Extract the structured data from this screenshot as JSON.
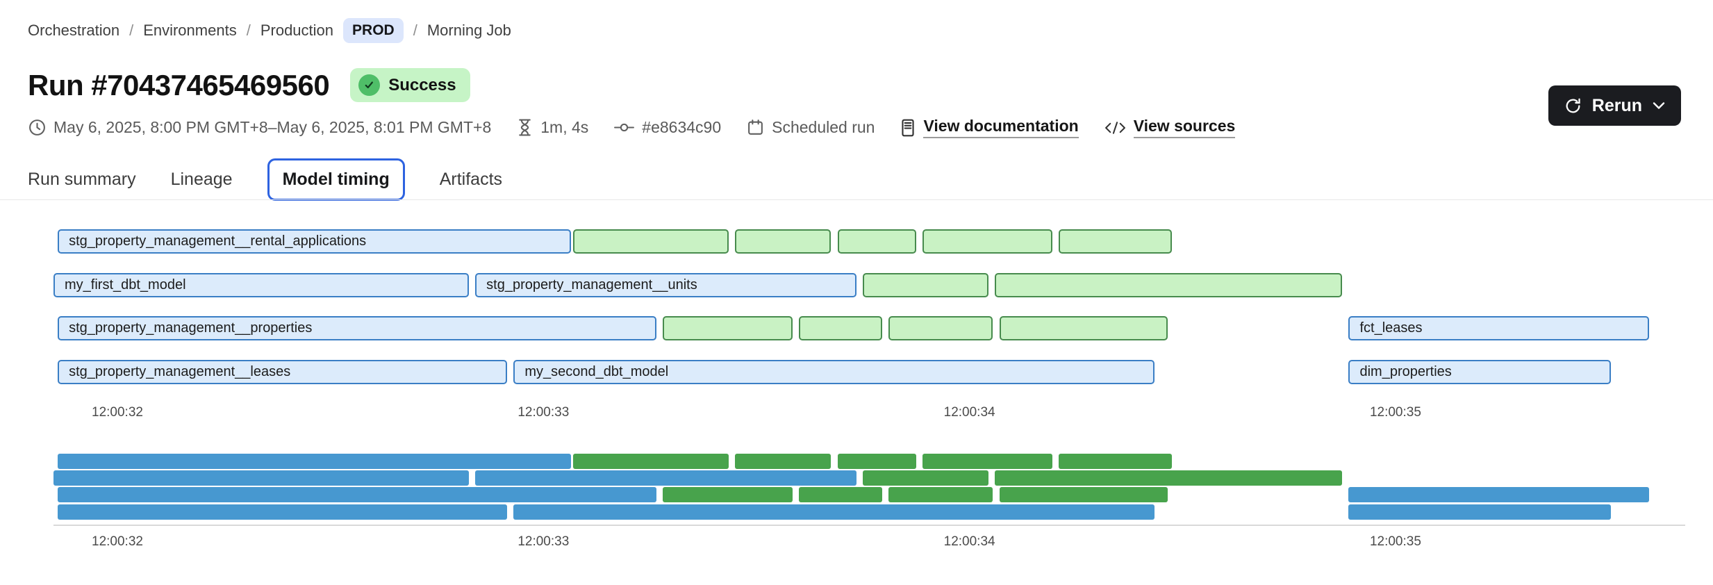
{
  "theme": {
    "accent_blue": "#2e63e0",
    "dark_button_bg": "#1b1c20",
    "prod_badge_bg": "#dce6fc",
    "success_badge_bg": "#c6f4c6",
    "success_icon_bg": "#4fbe68",
    "divider": "#e8e8e8",
    "minimap_divider": "#d9d9d9"
  },
  "breadcrumb": {
    "separator": "/",
    "items": [
      {
        "label": "Orchestration"
      },
      {
        "label": "Environments"
      },
      {
        "label": "Production"
      },
      {
        "label": "Morning Job"
      }
    ],
    "env_badge": "PROD"
  },
  "header": {
    "title": "Run #70437465469560",
    "status_label": "Success"
  },
  "meta": {
    "time_range": "May 6, 2025, 8:00 PM GMT+8–May 6, 2025, 8:01 PM GMT+8",
    "duration": "1m, 4s",
    "commit": "#e8634c90",
    "trigger": "Scheduled run",
    "documentation_link": "View documentation",
    "sources_link": "View sources"
  },
  "actions": {
    "rerun_label": "Rerun"
  },
  "tabs": [
    {
      "label": "Run summary",
      "active": false
    },
    {
      "label": "Lineage",
      "active": false
    },
    {
      "label": "Model timing",
      "active": true
    },
    {
      "label": "Artifacts",
      "active": false
    }
  ],
  "chart_data": {
    "type": "gantt",
    "title": "Model timing",
    "x_unit": "time of day, seconds after 12:00:00",
    "x_domain": [
      31.85,
      35.68
    ],
    "grid": false,
    "ticks": [
      {
        "t": 32,
        "label": "12:00:32"
      },
      {
        "t": 33,
        "label": "12:00:33"
      },
      {
        "t": 34,
        "label": "12:00:34"
      },
      {
        "t": 35,
        "label": "12:00:35"
      }
    ],
    "colors": {
      "blue_fill": "#dcebfb",
      "blue_border": "#3a7ec5",
      "green_fill": "#c9f2c4",
      "green_border": "#478b4d",
      "mini_blue": "#4798d0",
      "mini_green": "#48a34c"
    },
    "rows": [
      {
        "bars": [
          {
            "label": "stg_property_management__rental_applications",
            "color": "blue",
            "start": 31.86,
            "end": 33.07
          },
          {
            "label": "",
            "color": "green",
            "start": 33.07,
            "end": 33.44
          },
          {
            "label": "",
            "color": "green",
            "start": 33.45,
            "end": 33.68
          },
          {
            "label": "",
            "color": "green",
            "start": 33.69,
            "end": 33.88
          },
          {
            "label": "",
            "color": "green",
            "start": 33.89,
            "end": 34.2
          },
          {
            "label": "",
            "color": "green",
            "start": 34.21,
            "end": 34.48
          }
        ]
      },
      {
        "bars": [
          {
            "label": "my_first_dbt_model",
            "color": "blue",
            "start": 31.85,
            "end": 32.83
          },
          {
            "label": "stg_property_management__units",
            "color": "blue",
            "start": 32.84,
            "end": 33.74
          },
          {
            "label": "",
            "color": "green",
            "start": 33.75,
            "end": 34.05
          },
          {
            "label": "",
            "color": "green",
            "start": 34.06,
            "end": 34.88
          }
        ]
      },
      {
        "bars": [
          {
            "label": "stg_property_management__properties",
            "color": "blue",
            "start": 31.86,
            "end": 33.27
          },
          {
            "label": "",
            "color": "green",
            "start": 33.28,
            "end": 33.59
          },
          {
            "label": "",
            "color": "green",
            "start": 33.6,
            "end": 33.8
          },
          {
            "label": "",
            "color": "green",
            "start": 33.81,
            "end": 34.06
          },
          {
            "label": "",
            "color": "green",
            "start": 34.07,
            "end": 34.47
          },
          {
            "label": "fct_leases",
            "color": "blue",
            "start": 34.89,
            "end": 35.6
          }
        ]
      },
      {
        "bars": [
          {
            "label": "stg_property_management__leases",
            "color": "blue",
            "start": 31.86,
            "end": 32.92
          },
          {
            "label": "my_second_dbt_model",
            "color": "blue",
            "start": 32.93,
            "end": 34.44
          },
          {
            "label": "dim_properties",
            "color": "blue",
            "start": 34.89,
            "end": 35.51
          }
        ]
      }
    ]
  }
}
